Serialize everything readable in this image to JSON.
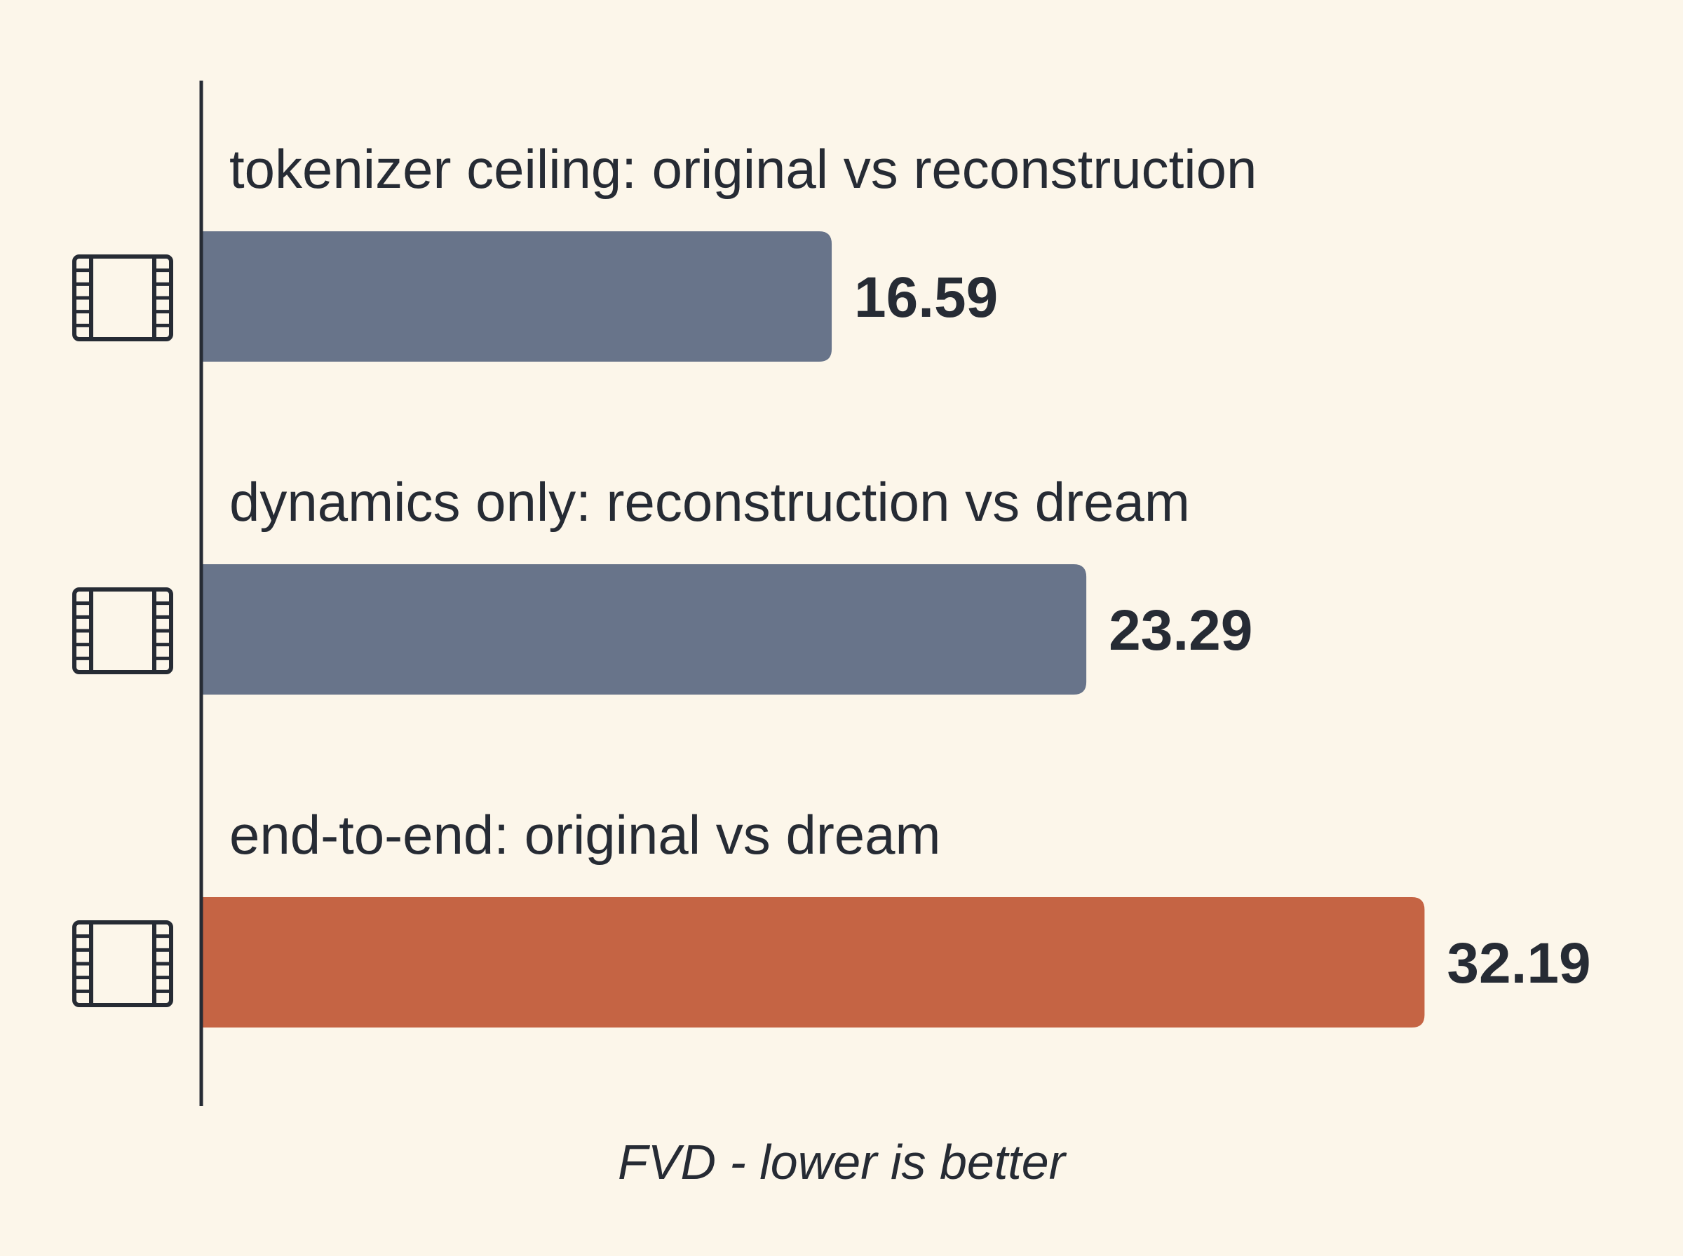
{
  "chart_data": {
    "type": "bar",
    "orientation": "horizontal",
    "categories": [
      "tokenizer ceiling: original vs reconstruction",
      "dynamics only: reconstruction vs dream",
      "end-to-end: original vs dream"
    ],
    "values": [
      16.59,
      23.29,
      32.19
    ],
    "value_labels": [
      "16.59",
      "23.29",
      "32.19"
    ],
    "xlabel": "FVD - lower is better",
    "xlim": [
      0,
      36.5
    ],
    "grid": false,
    "legend": "none",
    "bar_colors": [
      "#68748a",
      "#68748a",
      "#c56444"
    ],
    "category_icon": "film-strip-icon"
  },
  "colors": {
    "background": "#fcf6ea",
    "text": "#262b34",
    "axis": "#262b34"
  }
}
